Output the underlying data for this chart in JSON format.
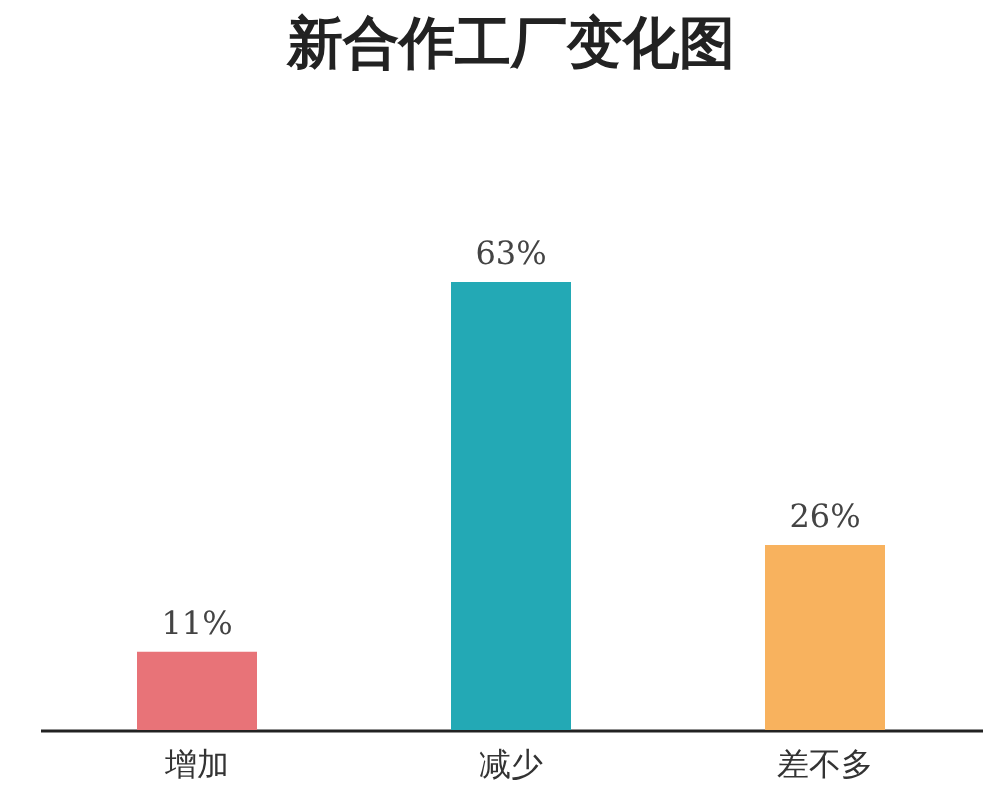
{
  "chart_data": {
    "type": "bar",
    "title": "新合作工厂变化图",
    "categories": [
      "增加",
      "减少",
      "差不多"
    ],
    "values": [
      11,
      63,
      26
    ],
    "colors": [
      "#e87378",
      "#23a9b5",
      "#f8b25e"
    ],
    "value_labels": [
      "11%",
      "63%",
      "26%"
    ]
  }
}
